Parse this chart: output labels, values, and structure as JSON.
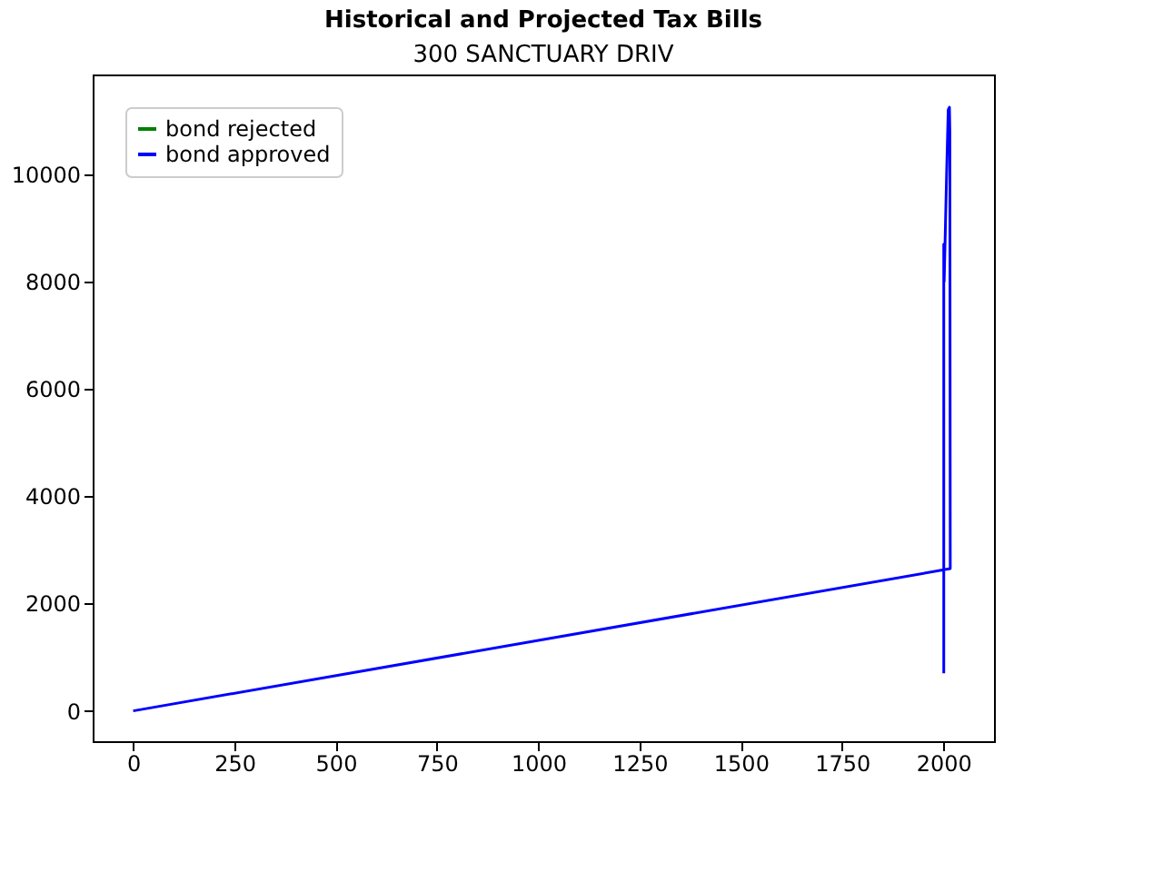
{
  "chart_data": {
    "type": "line",
    "title": "Historical and Projected Tax Bills",
    "subtitle": "300 SANCTUARY DRIV",
    "x": [
      2001,
      2001,
      2002,
      2008,
      2012,
      2015,
      2016,
      2017,
      2017,
      0
    ],
    "series": [
      {
        "name": "bond rejected",
        "color": "#008000",
        "values": [
          null,
          null,
          null,
          null,
          null,
          null,
          null,
          null,
          null,
          null
        ]
      },
      {
        "name": "bond approved",
        "color": "#0000ff",
        "values": [
          700,
          8700,
          8000,
          10000,
          11200,
          11250,
          10800,
          2650,
          2650,
          0
        ]
      }
    ],
    "xlim": [
      -100,
      2125
    ],
    "xticks": [
      0,
      250,
      500,
      750,
      1000,
      1250,
      1500,
      1750,
      2000
    ],
    "ylim": [
      -565,
      11860
    ],
    "yticks": [
      0,
      2000,
      4000,
      6000,
      8000,
      10000
    ],
    "grid": false,
    "legend": "top left",
    "marker": "none",
    "line_style": "solid"
  }
}
